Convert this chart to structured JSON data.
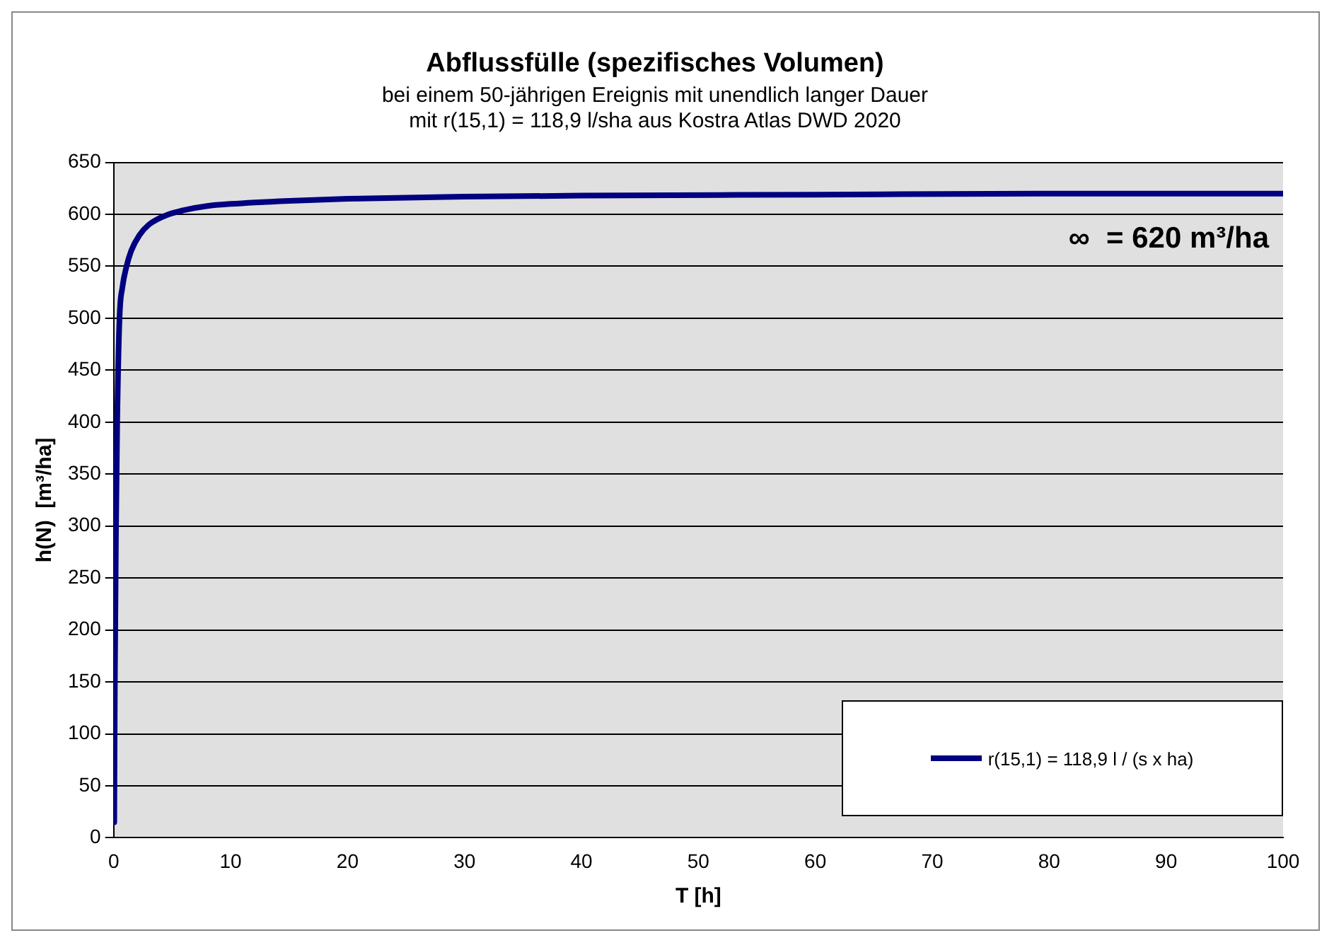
{
  "chart_data": {
    "type": "line",
    "title": "Abflussfülle (spezifisches Volumen)",
    "subtitle": "bei einem 50-jährigen Ereignis mit unendlich langer Dauer\nmit r(15,1) = 118,9 l/sha aus Kostra Atlas DWD 2020",
    "xlabel": "T [h]",
    "ylabel": "h(N)  [m³/ha]",
    "xlim": [
      0,
      100
    ],
    "xticks": [
      0,
      10,
      20,
      30,
      40,
      50,
      60,
      70,
      80,
      90,
      100
    ],
    "ylim": [
      0,
      650
    ],
    "yticks": [
      0,
      50,
      100,
      150,
      200,
      250,
      300,
      350,
      400,
      450,
      500,
      550,
      600,
      650
    ],
    "grid": "y",
    "legend": "bottom right",
    "marker": "none",
    "line_style": "solid",
    "annotations": [
      "∞  = 620 m³/ha"
    ],
    "series": [
      {
        "name": "r(15,1) = 118,9  l / (s x ha)",
        "color": "#000080",
        "x": [
          0.05,
          0.1,
          0.2,
          0.3,
          0.5,
          0.75,
          1.1,
          1.5,
          2.2,
          3,
          4.7,
          6,
          8,
          10,
          15,
          20,
          30,
          40,
          60,
          80,
          100
        ],
        "values": [
          15,
          150,
          300,
          400,
          500,
          530,
          550,
          565,
          580,
          590,
          600,
          604,
          608,
          610,
          613,
          615,
          617,
          618,
          619,
          620,
          620
        ]
      }
    ]
  }
}
